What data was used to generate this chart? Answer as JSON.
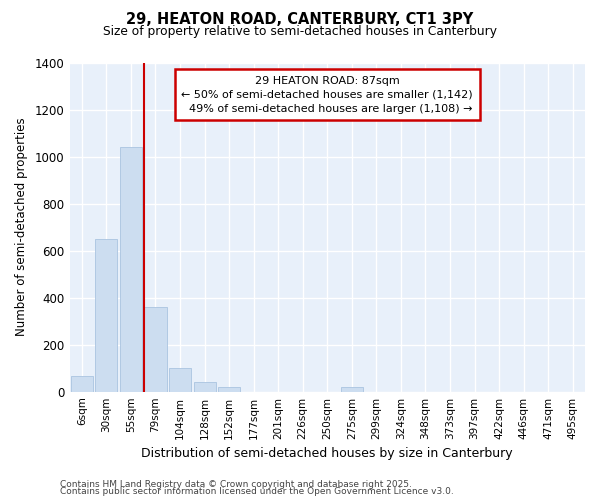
{
  "title": "29, HEATON ROAD, CANTERBURY, CT1 3PY",
  "subtitle": "Size of property relative to semi-detached houses in Canterbury",
  "xlabel": "Distribution of semi-detached houses by size in Canterbury",
  "ylabel": "Number of semi-detached properties",
  "bar_color": "#ccddf0",
  "bar_edge_color": "#aac4e0",
  "background_color": "#e8f0fa",
  "grid_color": "#ffffff",
  "vline_color": "#cc0000",
  "annotation_border_color": "#cc0000",
  "categories": [
    "6sqm",
    "30sqm",
    "55sqm",
    "79sqm",
    "104sqm",
    "128sqm",
    "152sqm",
    "177sqm",
    "201sqm",
    "226sqm",
    "250sqm",
    "275sqm",
    "299sqm",
    "324sqm",
    "348sqm",
    "373sqm",
    "397sqm",
    "422sqm",
    "446sqm",
    "471sqm",
    "495sqm"
  ],
  "values": [
    65,
    650,
    1040,
    360,
    100,
    40,
    20,
    0,
    0,
    0,
    0,
    20,
    0,
    0,
    0,
    0,
    0,
    0,
    0,
    0,
    0
  ],
  "property_label": "29 HEATON ROAD: 87sqm",
  "pct_smaller": 50,
  "n_smaller": 1142,
  "pct_larger": 49,
  "n_larger": 1108,
  "vline_bar_index": 3,
  "ylim": [
    0,
    1400
  ],
  "yticks": [
    0,
    200,
    400,
    600,
    800,
    1000,
    1200,
    1400
  ],
  "footnote1": "Contains HM Land Registry data © Crown copyright and database right 2025.",
  "footnote2": "Contains public sector information licensed under the Open Government Licence v3.0."
}
